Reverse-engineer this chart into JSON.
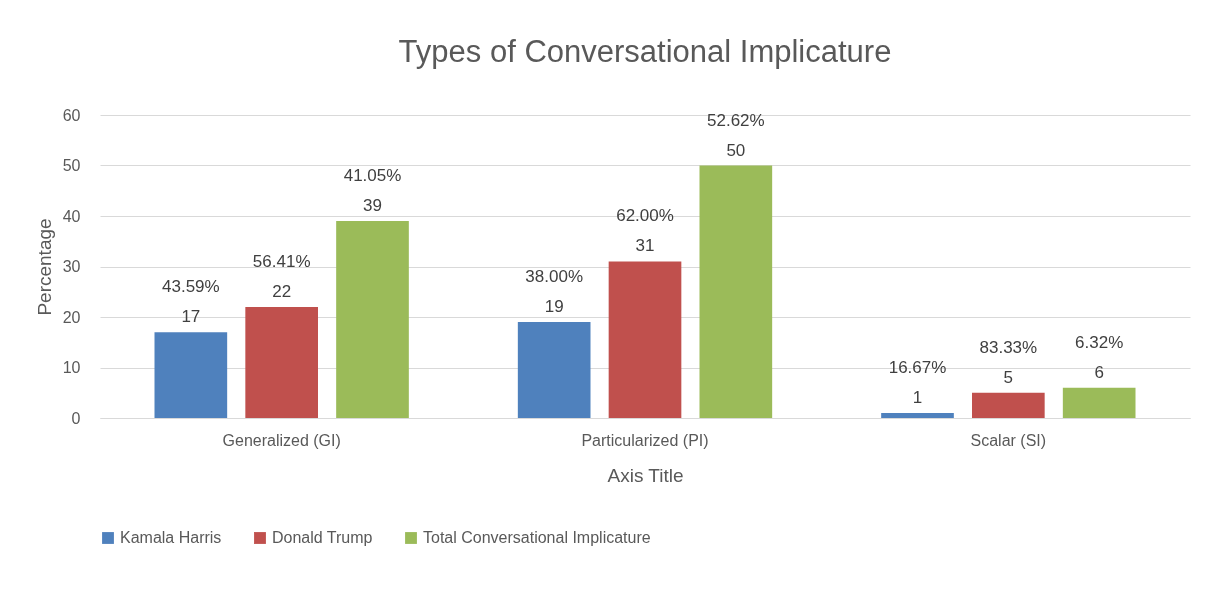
{
  "chart_data": {
    "type": "bar",
    "title": "Types of Conversational Implicature",
    "xlabel": "Axis Title",
    "ylabel": "Percentage",
    "categories": [
      "Generalized (GI)",
      "Particularized (PI)",
      "Scalar (SI)"
    ],
    "series": [
      {
        "name": "Kamala Harris",
        "color": "#4f81bd",
        "values": [
          17,
          19,
          1
        ],
        "value_labels": [
          "43.59%\n17",
          "38.00%\n19",
          "16.67%\n1"
        ]
      },
      {
        "name": "Donald Trump",
        "color": "#c0504d",
        "values": [
          22,
          31,
          5
        ],
        "value_labels": [
          "56.41%\n22",
          "62.00%\n31",
          "83.33%\n5"
        ]
      },
      {
        "name": "Total Conversational Implicature",
        "color": "#9bbb59",
        "values": [
          39,
          50,
          6
        ],
        "value_labels": [
          "41.05%\n39",
          "52.62%\n50",
          "6.32%\n6"
        ]
      }
    ],
    "ylim": [
      0,
      60
    ],
    "yticks": [
      0,
      10,
      20,
      30,
      40,
      50,
      60
    ],
    "grid": "y",
    "legend": "bottom"
  }
}
